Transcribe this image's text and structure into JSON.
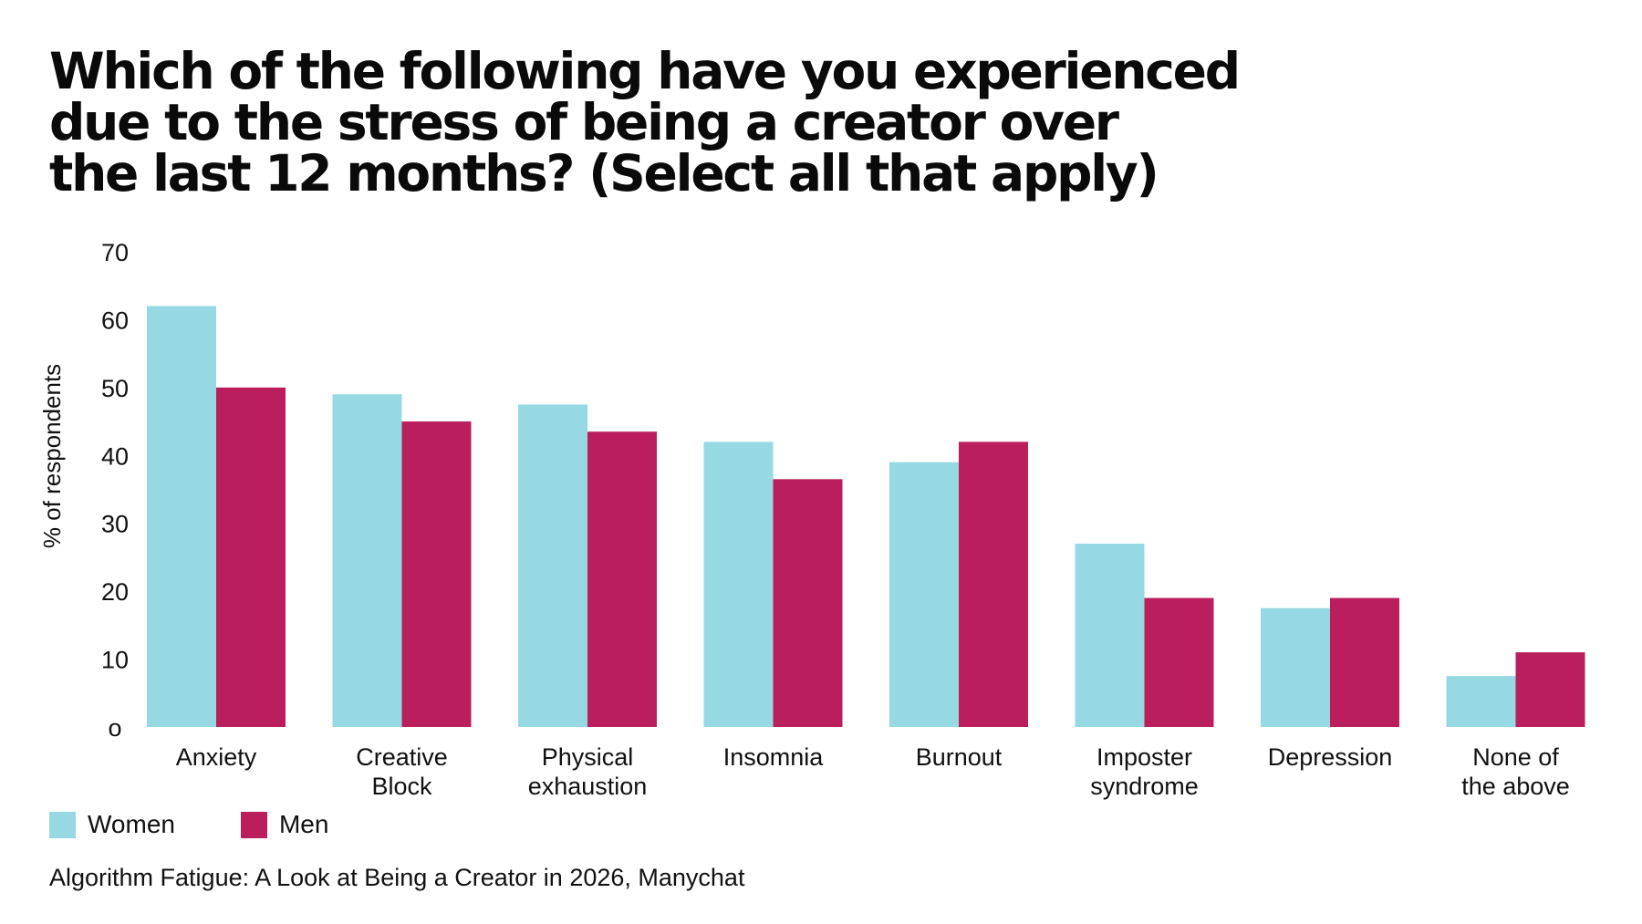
{
  "chart_data": {
    "type": "bar",
    "title_lines": [
      "Which of the following have you experienced",
      "due to the stress of being a creator over",
      "the last 12 months? (Select all that apply)"
    ],
    "ylabel": "% of respondents",
    "ylim": [
      0,
      70
    ],
    "yticks": [
      "o",
      "10",
      "20",
      "30",
      "40",
      "50",
      "60",
      "70"
    ],
    "grid": false,
    "legend_position": "bottom-left",
    "categories": [
      [
        "Anxiety"
      ],
      [
        "Creative",
        "Block"
      ],
      [
        "Physical",
        "exhaustion"
      ],
      [
        "Insomnia"
      ],
      [
        "Burnout"
      ],
      [
        "Imposter",
        "syndrome"
      ],
      [
        "Depression"
      ],
      [
        "None of",
        "the above"
      ]
    ],
    "series": [
      {
        "name": "Women",
        "color": "#96d9e2",
        "values": [
          62,
          49,
          47.5,
          42,
          39,
          27,
          17.5,
          7.5
        ]
      },
      {
        "name": "Men",
        "color": "#ba1e5c",
        "values": [
          50,
          45,
          43.5,
          36.5,
          42,
          19,
          19,
          11
        ]
      }
    ],
    "source": "Algorithm Fatigue: A Look at Being a Creator in 2026, Manychat"
  }
}
